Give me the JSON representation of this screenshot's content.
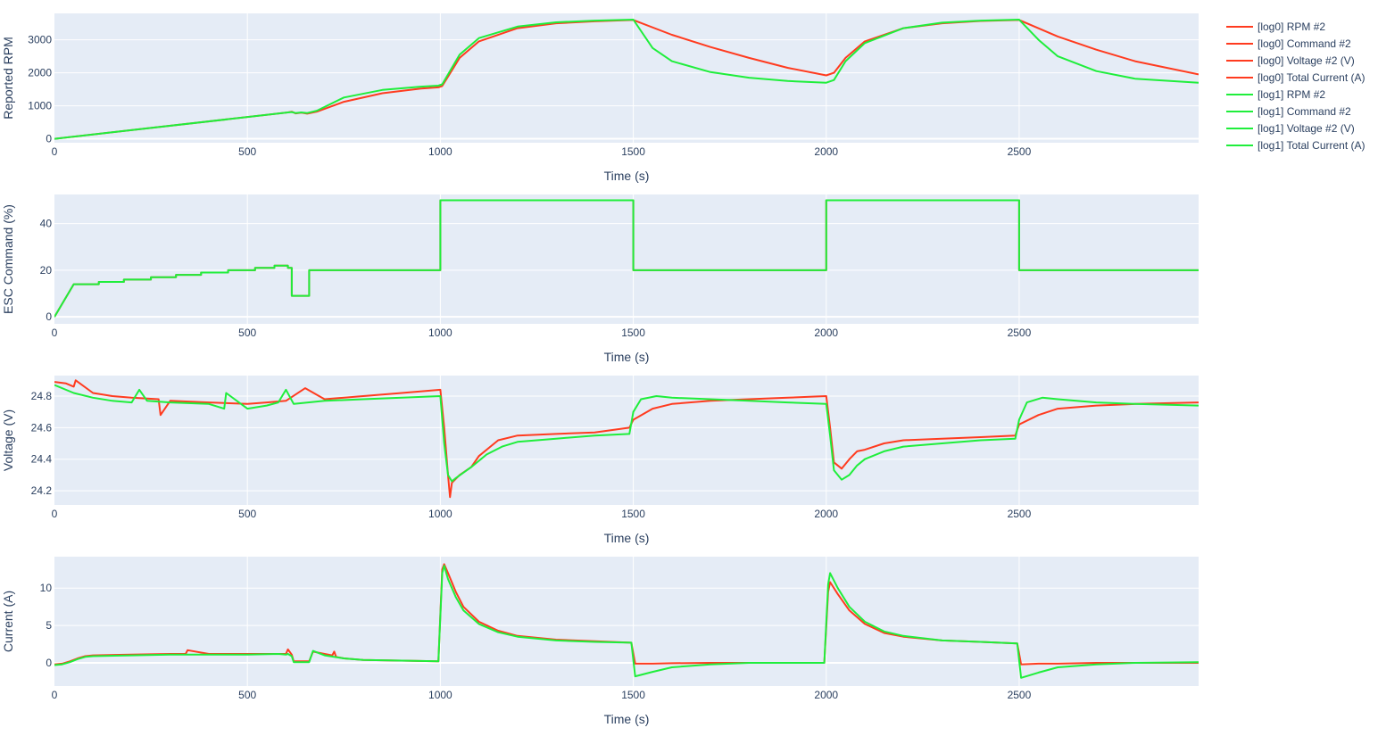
{
  "chart_data": [
    {
      "type": "line",
      "ylabel": "Reported RPM",
      "xlabel": "Time (s)",
      "xlim": [
        0,
        2965
      ],
      "ylim": [
        -120,
        3800
      ],
      "xticks": [
        0,
        500,
        1000,
        1500,
        2000,
        2500
      ],
      "yticks": [
        0,
        1000,
        2000,
        3000
      ],
      "series": [
        {
          "name": "[log0] RPM #2",
          "color": "#ff3b1f",
          "x": [
            0,
            600,
            615,
            625,
            640,
            655,
            680,
            750,
            850,
            950,
            995,
            1005,
            1050,
            1100,
            1200,
            1300,
            1400,
            1500,
            1600,
            1700,
            1800,
            1900,
            2000,
            2020,
            2050,
            2100,
            2200,
            2300,
            2400,
            2500,
            2600,
            2700,
            2800,
            2965
          ],
          "y": [
            0,
            790,
            820,
            770,
            790,
            760,
            820,
            1120,
            1380,
            1520,
            1560,
            1600,
            2450,
            2950,
            3350,
            3500,
            3560,
            3600,
            3150,
            2780,
            2450,
            2150,
            1920,
            2000,
            2450,
            2950,
            3350,
            3500,
            3570,
            3600,
            3100,
            2700,
            2350,
            1950
          ]
        },
        {
          "name": "[log0] Command #2",
          "color": "#ff3b1f",
          "x": [],
          "y": []
        },
        {
          "name": "[log0] Voltage #2 (V)",
          "color": "#ff3b1f",
          "x": [],
          "y": []
        },
        {
          "name": "[log0] Total Current (A)",
          "color": "#ff3b1f",
          "x": [],
          "y": []
        },
        {
          "name": "[log1] RPM #2",
          "color": "#1fee3b",
          "x": [
            0,
            600,
            615,
            625,
            640,
            655,
            680,
            750,
            850,
            950,
            995,
            1005,
            1050,
            1100,
            1200,
            1300,
            1400,
            1500,
            1550,
            1600,
            1700,
            1800,
            1900,
            2000,
            2020,
            2050,
            2100,
            2200,
            2300,
            2400,
            2500,
            2550,
            2600,
            2700,
            2800,
            2965
          ],
          "y": [
            0,
            790,
            810,
            780,
            800,
            780,
            850,
            1250,
            1480,
            1580,
            1610,
            1650,
            2550,
            3050,
            3400,
            3530,
            3580,
            3610,
            2750,
            2350,
            2020,
            1850,
            1750,
            1700,
            1780,
            2350,
            2900,
            3350,
            3520,
            3580,
            3610,
            3000,
            2500,
            2050,
            1820,
            1700
          ]
        },
        {
          "name": "[log1] Command #2",
          "color": "#1fee3b",
          "x": [],
          "y": []
        },
        {
          "name": "[log1] Voltage #2 (V)",
          "color": "#1fee3b",
          "x": [],
          "y": []
        },
        {
          "name": "[log1] Total Current (A)",
          "color": "#1fee3b",
          "x": [],
          "y": []
        }
      ]
    },
    {
      "type": "line",
      "ylabel": "ESC Command (%)",
      "xlabel": "Time (s)",
      "xlim": [
        0,
        2965
      ],
      "ylim": [
        -3,
        52.5
      ],
      "xticks": [
        0,
        500,
        1000,
        1500,
        2000,
        2500
      ],
      "yticks": [
        0,
        20,
        40
      ],
      "series": [
        {
          "name": "[log0] Command #2",
          "color": "#ff3b1f",
          "x": [
            0,
            50,
            115,
            115,
            180,
            180,
            250,
            250,
            315,
            315,
            380,
            380,
            450,
            450,
            520,
            520,
            570,
            570,
            605,
            605,
            615,
            615,
            660,
            660,
            1000,
            1000,
            1500,
            1500,
            2000,
            2000,
            2500,
            2500,
            2965
          ],
          "y": [
            0,
            14,
            14,
            15,
            15,
            16,
            16,
            17,
            17,
            18,
            18,
            19,
            19,
            20,
            20,
            21,
            21,
            22,
            22,
            21,
            21,
            9,
            9,
            20,
            20,
            50,
            50,
            20,
            20,
            50,
            50,
            20,
            20
          ]
        },
        {
          "name": "[log1] Command #2",
          "color": "#1fee3b",
          "x": [
            0,
            50,
            115,
            115,
            180,
            180,
            250,
            250,
            315,
            315,
            380,
            380,
            450,
            450,
            520,
            520,
            570,
            570,
            605,
            605,
            615,
            615,
            660,
            660,
            1000,
            1000,
            1500,
            1500,
            2000,
            2000,
            2500,
            2500,
            2965
          ],
          "y": [
            0,
            14,
            14,
            15,
            15,
            16,
            16,
            17,
            17,
            18,
            18,
            19,
            19,
            20,
            20,
            21,
            21,
            22,
            22,
            21,
            21,
            9,
            9,
            20,
            20,
            50,
            50,
            20,
            20,
            50,
            50,
            20,
            20
          ]
        }
      ]
    },
    {
      "type": "line",
      "ylabel": "Voltage (V)",
      "xlabel": "Time (s)",
      "xlim": [
        0,
        2965
      ],
      "ylim": [
        24.11,
        24.93
      ],
      "xticks": [
        0,
        500,
        1000,
        1500,
        2000,
        2500
      ],
      "yticks": [
        24.2,
        24.4,
        24.6,
        24.8
      ],
      "series": [
        {
          "name": "[log0] Voltage #2 (V)",
          "color": "#ff3b1f",
          "x": [
            0,
            30,
            50,
            55,
            100,
            150,
            200,
            270,
            275,
            300,
            400,
            500,
            550,
            600,
            650,
            700,
            800,
            900,
            1000,
            1010,
            1020,
            1025,
            1030,
            1050,
            1080,
            1100,
            1150,
            1200,
            1300,
            1400,
            1490,
            1500,
            1550,
            1600,
            1700,
            1800,
            1900,
            2000,
            2010,
            2020,
            2040,
            2060,
            2080,
            2100,
            2150,
            2200,
            2300,
            2400,
            2490,
            2500,
            2550,
            2600,
            2700,
            2800,
            2965
          ],
          "y": [
            24.89,
            24.88,
            24.86,
            24.9,
            24.82,
            24.8,
            24.79,
            24.78,
            24.68,
            24.77,
            24.76,
            24.75,
            24.76,
            24.77,
            24.85,
            24.78,
            24.8,
            24.82,
            24.84,
            24.6,
            24.3,
            24.16,
            24.25,
            24.3,
            24.35,
            24.42,
            24.52,
            24.55,
            24.56,
            24.57,
            24.6,
            24.65,
            24.72,
            24.75,
            24.77,
            24.78,
            24.79,
            24.8,
            24.6,
            24.38,
            24.34,
            24.4,
            24.45,
            24.46,
            24.5,
            24.52,
            24.53,
            24.54,
            24.55,
            24.62,
            24.68,
            24.72,
            24.74,
            24.75,
            24.76
          ]
        },
        {
          "name": "[log1] Voltage #2 (V)",
          "color": "#1fee3b",
          "x": [
            0,
            50,
            100,
            150,
            200,
            220,
            240,
            300,
            400,
            440,
            445,
            500,
            550,
            580,
            600,
            620,
            700,
            800,
            900,
            1000,
            1010,
            1020,
            1030,
            1040,
            1080,
            1120,
            1160,
            1200,
            1300,
            1400,
            1490,
            1500,
            1520,
            1560,
            1600,
            1700,
            1800,
            1900,
            2000,
            2010,
            2020,
            2040,
            2060,
            2080,
            2100,
            2150,
            2200,
            2300,
            2400,
            2490,
            2500,
            2520,
            2560,
            2600,
            2700,
            2800,
            2965
          ],
          "y": [
            24.87,
            24.82,
            24.79,
            24.77,
            24.76,
            24.84,
            24.77,
            24.76,
            24.75,
            24.72,
            24.82,
            24.72,
            24.74,
            24.76,
            24.84,
            24.75,
            24.77,
            24.78,
            24.79,
            24.8,
            24.5,
            24.3,
            24.26,
            24.28,
            24.35,
            24.43,
            24.48,
            24.51,
            24.53,
            24.55,
            24.56,
            24.7,
            24.78,
            24.8,
            24.79,
            24.78,
            24.77,
            24.76,
            24.75,
            24.55,
            24.33,
            24.27,
            24.3,
            24.36,
            24.4,
            24.45,
            24.48,
            24.5,
            24.52,
            24.53,
            24.65,
            24.76,
            24.79,
            24.78,
            24.76,
            24.75,
            24.74
          ]
        }
      ]
    },
    {
      "type": "line",
      "ylabel": "Current (A)",
      "xlabel": "Time (s)",
      "xlim": [
        0,
        2965
      ],
      "ylim": [
        -3.1,
        14.2
      ],
      "xticks": [
        0,
        500,
        1000,
        1500,
        2000,
        2500
      ],
      "yticks": [
        0,
        5,
        10
      ],
      "series": [
        {
          "name": "[log0] Total Current (A)",
          "color": "#ff3b1f",
          "x": [
            0,
            20,
            40,
            60,
            80,
            100,
            200,
            300,
            340,
            345,
            400,
            500,
            580,
            600,
            605,
            615,
            620,
            660,
            670,
            700,
            720,
            725,
            730,
            750,
            800,
            900,
            995,
            1005,
            1010,
            1020,
            1040,
            1060,
            1100,
            1150,
            1200,
            1300,
            1400,
            1495,
            1505,
            1550,
            1600,
            1700,
            1800,
            1900,
            1995,
            2005,
            2010,
            2030,
            2060,
            2100,
            2150,
            2200,
            2300,
            2400,
            2495,
            2505,
            2550,
            2600,
            2700,
            2800,
            2965
          ],
          "y": [
            -0.2,
            -0.1,
            0.2,
            0.6,
            0.9,
            1.0,
            1.1,
            1.2,
            1.2,
            1.7,
            1.2,
            1.2,
            1.2,
            1.2,
            1.8,
            1.1,
            0.2,
            0.2,
            1.5,
            1.2,
            1.0,
            1.5,
            0.8,
            0.6,
            0.4,
            0.3,
            0.2,
            12.5,
            13.2,
            12.0,
            9.5,
            7.5,
            5.5,
            4.3,
            3.6,
            3.1,
            2.9,
            2.7,
            -0.1,
            -0.1,
            -0.05,
            0.0,
            0.0,
            0.0,
            0.0,
            9.5,
            10.8,
            9.2,
            7.0,
            5.2,
            4.0,
            3.5,
            3.0,
            2.8,
            2.6,
            -0.2,
            -0.1,
            -0.1,
            0.0,
            0.0,
            0.0
          ]
        },
        {
          "name": "[log1] Total Current (A)",
          "color": "#1fee3b",
          "x": [
            0,
            20,
            40,
            60,
            80,
            100,
            200,
            300,
            400,
            500,
            580,
            600,
            605,
            615,
            620,
            660,
            670,
            700,
            750,
            800,
            900,
            995,
            1005,
            1010,
            1020,
            1040,
            1060,
            1100,
            1150,
            1200,
            1300,
            1400,
            1495,
            1505,
            1550,
            1600,
            1700,
            1800,
            1900,
            1995,
            2005,
            2010,
            2030,
            2060,
            2100,
            2150,
            2200,
            2300,
            2400,
            2495,
            2505,
            2550,
            2600,
            2700,
            2800,
            2965
          ],
          "y": [
            -0.3,
            -0.2,
            0.1,
            0.5,
            0.8,
            0.9,
            1.0,
            1.1,
            1.1,
            1.1,
            1.2,
            1.1,
            1.2,
            0.9,
            0.1,
            0.1,
            1.6,
            1.0,
            0.6,
            0.4,
            0.3,
            0.2,
            12.0,
            13.0,
            11.2,
            8.8,
            7.0,
            5.2,
            4.1,
            3.5,
            3.0,
            2.8,
            2.7,
            -1.8,
            -1.2,
            -0.6,
            -0.2,
            0.0,
            0.0,
            0.0,
            10.5,
            12.0,
            10.0,
            7.5,
            5.5,
            4.2,
            3.6,
            3.0,
            2.8,
            2.6,
            -2.0,
            -1.3,
            -0.6,
            -0.2,
            0.0,
            0.1
          ]
        }
      ]
    }
  ],
  "legend": {
    "position": "top-right",
    "items": [
      {
        "label": "[log0] RPM #2",
        "color": "#ff3b1f"
      },
      {
        "label": "[log0] Command #2",
        "color": "#ff3b1f"
      },
      {
        "label": "[log0] Voltage #2 (V)",
        "color": "#ff3b1f"
      },
      {
        "label": "[log0] Total Current (A)",
        "color": "#ff3b1f"
      },
      {
        "label": "[log1] RPM #2",
        "color": "#1fee3b"
      },
      {
        "label": "[log1] Command #2",
        "color": "#1fee3b"
      },
      {
        "label": "[log1] Voltage #2 (V)",
        "color": "#1fee3b"
      },
      {
        "label": "[log1] Total Current (A)",
        "color": "#1fee3b"
      }
    ]
  },
  "colors": {
    "plot_bg": "#e5ecf6",
    "grid": "#ffffff",
    "text": "#2a3f5f"
  }
}
